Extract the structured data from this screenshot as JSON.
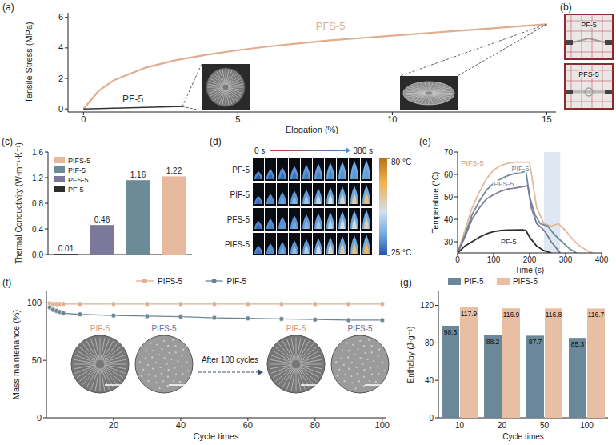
{
  "chart_data": [
    {
      "panel": "(a)",
      "type": "line",
      "x_label": "Elogation (%)",
      "y_label": "Tensile Stress (MPa)",
      "xlim": [
        -0.5,
        15.3
      ],
      "xticks": [
        0,
        5,
        10,
        15
      ],
      "ylim": [
        -0.2,
        6.3
      ],
      "yticks": [
        0,
        2,
        4,
        6
      ],
      "series": [
        {
          "name": "PFS-5",
          "color": "#e0ad8f",
          "x": [
            0,
            0.5,
            1,
            2,
            3,
            4,
            5,
            6,
            7,
            8,
            9,
            10,
            11,
            12,
            13,
            14,
            15
          ],
          "values": [
            0,
            1.2,
            1.9,
            2.7,
            3.2,
            3.55,
            3.85,
            4.1,
            4.3,
            4.5,
            4.65,
            4.8,
            4.95,
            5.1,
            5.25,
            5.4,
            5.55
          ]
        },
        {
          "name": "PF-5",
          "color": "#333333",
          "x": [
            0,
            1,
            2,
            3,
            3.2
          ],
          "values": [
            0,
            0.05,
            0.1,
            0.15,
            0.15
          ]
        }
      ]
    },
    {
      "panel": "(b)",
      "type": "image",
      "labels": [
        "PF-5",
        "PFS-5"
      ]
    },
    {
      "panel": "(c)",
      "type": "bar",
      "y_label": "Thermal Conductivity (W·m⁻¹·K⁻¹)",
      "categories": [
        "PF-5",
        "PFS-5",
        "PIF-5",
        "PIFS-5"
      ],
      "values": [
        0.01,
        0.46,
        1.16,
        1.22
      ],
      "colors": [
        "#2d2d2d",
        "#7b7899",
        "#6b8c96",
        "#e6b89c"
      ],
      "ylim": [
        0,
        1.6
      ],
      "yticks": [
        {
          "value": 0,
          "label": "0.0"
        },
        0.4,
        0.8,
        1.2,
        1.6
      ],
      "data_labels": true,
      "legend": "upper left",
      "tick_labels": "y"
    },
    {
      "panel": "(d)",
      "type": "image",
      "time_labels": [
        "0 s",
        "380 s"
      ],
      "rows": [
        "PF-5",
        "PIF-5",
        "PFS-5",
        "PIFS-5"
      ],
      "colorbar_range": [
        25,
        80
      ],
      "colorbar_ticks": [
        {
          "value": 80,
          "label": "80 °C"
        },
        {
          "value": 25,
          "label": "25 °C"
        }
      ]
    },
    {
      "panel": "(e)",
      "type": "line",
      "x_label": "Time (s)",
      "y_label": "Temperature (°C)",
      "xlim": [
        0,
        400
      ],
      "xticks": [
        0,
        100,
        200,
        300,
        400
      ],
      "ylim": [
        25,
        70
      ],
      "yticks": [
        30,
        40,
        50,
        60,
        70
      ],
      "shaded_x": [
        240,
        285
      ],
      "series": [
        {
          "name": "PIFS-5",
          "color": "#e6b89c",
          "x": [
            0,
            20,
            40,
            60,
            80,
            100,
            120,
            140,
            160,
            200,
            210,
            220,
            240,
            260,
            280,
            300,
            320,
            340,
            360,
            375
          ],
          "values": [
            25,
            35,
            45,
            52,
            58,
            62,
            64,
            65,
            65.5,
            65.5,
            55,
            45,
            38,
            37,
            38,
            35,
            31,
            28,
            26,
            25
          ]
        },
        {
          "name": "PIF-5",
          "color": "#6b8c96",
          "x": [
            0,
            20,
            40,
            60,
            80,
            100,
            120,
            140,
            160,
            180,
            190,
            200,
            215,
            230,
            250,
            270,
            290,
            310,
            330
          ],
          "values": [
            25,
            33,
            42,
            48,
            53,
            56,
            58,
            59.5,
            60.5,
            61,
            61.5,
            50,
            42,
            38,
            37,
            33,
            30,
            27,
            25
          ]
        },
        {
          "name": "PFS-5",
          "color": "#7b7899",
          "x": [
            0,
            20,
            40,
            60,
            80,
            100,
            120,
            140,
            160,
            180,
            195,
            205,
            220,
            235,
            245,
            260,
            275,
            285
          ],
          "values": [
            25,
            32,
            40,
            45,
            49,
            51,
            52.5,
            53.5,
            54,
            54.5,
            55,
            45,
            38,
            36,
            34,
            30,
            27,
            25
          ]
        },
        {
          "name": "PF-5",
          "color": "#2d2d2d",
          "x": [
            0,
            20,
            40,
            60,
            80,
            100,
            120,
            140,
            180,
            190,
            200,
            220,
            240,
            260
          ],
          "values": [
            25,
            28,
            30,
            32,
            33.5,
            34.5,
            35,
            35.2,
            35.3,
            35,
            32,
            28,
            26,
            25
          ]
        }
      ]
    },
    {
      "panel": "(f)",
      "type": "line",
      "x_label": "Cycle times",
      "y_label": "Mass maintenance (%)",
      "xlim": [
        0,
        101
      ],
      "xticks": [
        20,
        40,
        60,
        80,
        100
      ],
      "ylim": [
        0,
        110
      ],
      "yticks": [
        0,
        50,
        100
      ],
      "legend": "top",
      "series": [
        {
          "name": "PIFS-5",
          "color": "#e0ad8f",
          "marker": "circle",
          "x": [
            1,
            2,
            3,
            4,
            5,
            10,
            20,
            30,
            40,
            50,
            60,
            70,
            80,
            90,
            100
          ],
          "values": [
            99.5,
            99,
            99,
            99,
            99,
            99,
            99,
            99,
            99,
            99,
            99,
            99,
            99,
            99,
            99
          ]
        },
        {
          "name": "PIF-5",
          "color": "#6b8796",
          "marker": "circle",
          "x": [
            1,
            2,
            3,
            4,
            5,
            10,
            20,
            30,
            40,
            50,
            60,
            70,
            80,
            90,
            100
          ],
          "values": [
            96,
            94,
            93,
            92,
            91,
            90,
            89,
            88.5,
            88,
            87,
            86.5,
            86,
            85.5,
            85,
            85
          ]
        }
      ],
      "insets": {
        "labels": [
          "PIF-5",
          "PIFS-5",
          "PIF-5",
          "PIFS-5"
        ],
        "arrow_text": "After 100 cycles"
      }
    },
    {
      "panel": "(g)",
      "type": "bar",
      "x_label": "Cycle times",
      "y_label": "Enthalpy (J·g⁻¹)",
      "categories": [
        "10",
        "20",
        "50",
        "100"
      ],
      "ylim": [
        0,
        135
      ],
      "yticks": [
        0,
        40,
        80,
        120
      ],
      "data_labels": true,
      "legend": "top",
      "series": [
        {
          "name": "PIF-5",
          "color": "#6b879a",
          "values": [
            98.3,
            88.2,
            87.7,
            85.3
          ]
        },
        {
          "name": "PIFS-5",
          "color": "#e8bfa3",
          "values": [
            117.9,
            116.9,
            116.8,
            116.7
          ]
        }
      ]
    }
  ]
}
